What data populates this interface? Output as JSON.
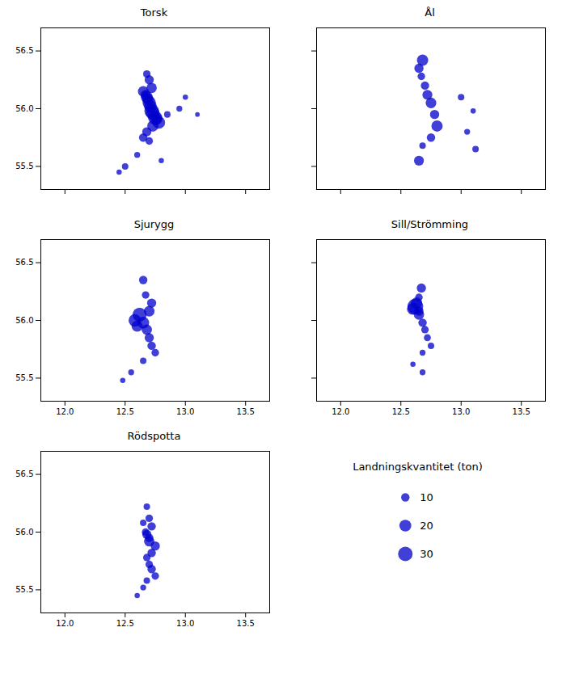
{
  "chart_data": {
    "type": "scatter",
    "color": "#0000CC",
    "xlim": [
      11.8,
      13.7
    ],
    "ylim": [
      55.3,
      56.7
    ],
    "xticks": [
      {
        "value": 12.0,
        "label": "12.0"
      },
      12.5,
      {
        "value": 13.0,
        "label": "13.0"
      },
      13.5
    ],
    "yticks": [
      55.5,
      {
        "value": 56.0,
        "label": "56.0"
      },
      56.5
    ],
    "grid": false,
    "panels": [
      {
        "title": "Torsk",
        "tick_labels": "y",
        "x": [
          12.68,
          12.7,
          12.72,
          12.68,
          12.7,
          12.72,
          12.75,
          12.78,
          12.73,
          12.68,
          12.65,
          12.7,
          12.85,
          12.95,
          13.0,
          12.6,
          12.5,
          12.8,
          12.65,
          12.67,
          12.69,
          12.71,
          12.73,
          12.76,
          13.1,
          12.45
        ],
        "y": [
          56.3,
          56.25,
          56.18,
          56.1,
          56.05,
          55.98,
          55.92,
          55.88,
          55.85,
          55.8,
          55.75,
          55.72,
          55.95,
          56.0,
          56.1,
          55.6,
          55.5,
          55.55,
          56.15,
          56.12,
          56.08,
          56.02,
          55.96,
          55.91,
          55.95,
          55.45
        ],
        "sizes": [
          8,
          12,
          15,
          20,
          25,
          30,
          28,
          22,
          18,
          12,
          10,
          8,
          6,
          5,
          4,
          5,
          6,
          4,
          16,
          14,
          18,
          22,
          26,
          20,
          3,
          4
        ]
      },
      {
        "title": "Ål",
        "tick_labels": false,
        "x": [
          12.68,
          12.65,
          12.67,
          12.7,
          12.72,
          12.75,
          12.78,
          12.8,
          12.75,
          12.68,
          12.65,
          13.0,
          13.1,
          13.05,
          13.12
        ],
        "y": [
          56.42,
          56.35,
          56.28,
          56.2,
          56.12,
          56.05,
          55.95,
          55.85,
          55.75,
          55.68,
          55.55,
          56.1,
          55.98,
          55.8,
          55.65
        ],
        "sizes": [
          18,
          12,
          8,
          10,
          14,
          16,
          12,
          18,
          10,
          6,
          14,
          6,
          4,
          5,
          6
        ]
      },
      {
        "title": "Sjurygg",
        "x": [
          12.65,
          12.67,
          12.62,
          12.65,
          12.68,
          12.7,
          12.72,
          12.75,
          12.65,
          12.55,
          12.48,
          12.72,
          12.7,
          12.58,
          12.6
        ],
        "y": [
          56.35,
          56.22,
          56.05,
          55.98,
          55.92,
          55.85,
          55.78,
          55.72,
          55.65,
          55.55,
          55.48,
          56.15,
          56.08,
          56.0,
          55.95
        ],
        "sizes": [
          10,
          8,
          28,
          20,
          15,
          12,
          10,
          8,
          6,
          5,
          4,
          12,
          16,
          22,
          18
        ]
      },
      {
        "title": "Sill/Strömming",
        "tick_labels": "x",
        "x": [
          12.67,
          12.65,
          12.62,
          12.65,
          12.68,
          12.7,
          12.72,
          12.75,
          12.68,
          12.6,
          12.68,
          12.65,
          12.63,
          12.6
        ],
        "y": [
          56.28,
          56.2,
          56.12,
          56.05,
          55.98,
          55.92,
          55.85,
          55.78,
          55.72,
          55.62,
          55.55,
          56.08,
          56.15,
          56.1
        ],
        "sizes": [
          12,
          8,
          35,
          15,
          10,
          8,
          7,
          6,
          5,
          4,
          5,
          12,
          18,
          20
        ]
      },
      {
        "title": "Rödspotta",
        "x": [
          12.68,
          12.7,
          12.72,
          12.68,
          12.7,
          12.75,
          12.72,
          12.68,
          12.7,
          12.72,
          12.75,
          12.68,
          12.65,
          12.6,
          12.65,
          12.67,
          12.7
        ],
        "y": [
          56.22,
          56.12,
          56.05,
          55.98,
          55.92,
          55.88,
          55.82,
          55.78,
          55.72,
          55.68,
          55.62,
          55.58,
          55.52,
          55.45,
          56.08,
          56.0,
          55.95
        ],
        "sizes": [
          6,
          8,
          10,
          12,
          15,
          12,
          10,
          8,
          8,
          10,
          8,
          6,
          5,
          4,
          6,
          8,
          10
        ]
      }
    ],
    "size_legend": {
      "title": "Landningskvantitet (ton)",
      "values": [
        10,
        20,
        30
      ]
    }
  }
}
